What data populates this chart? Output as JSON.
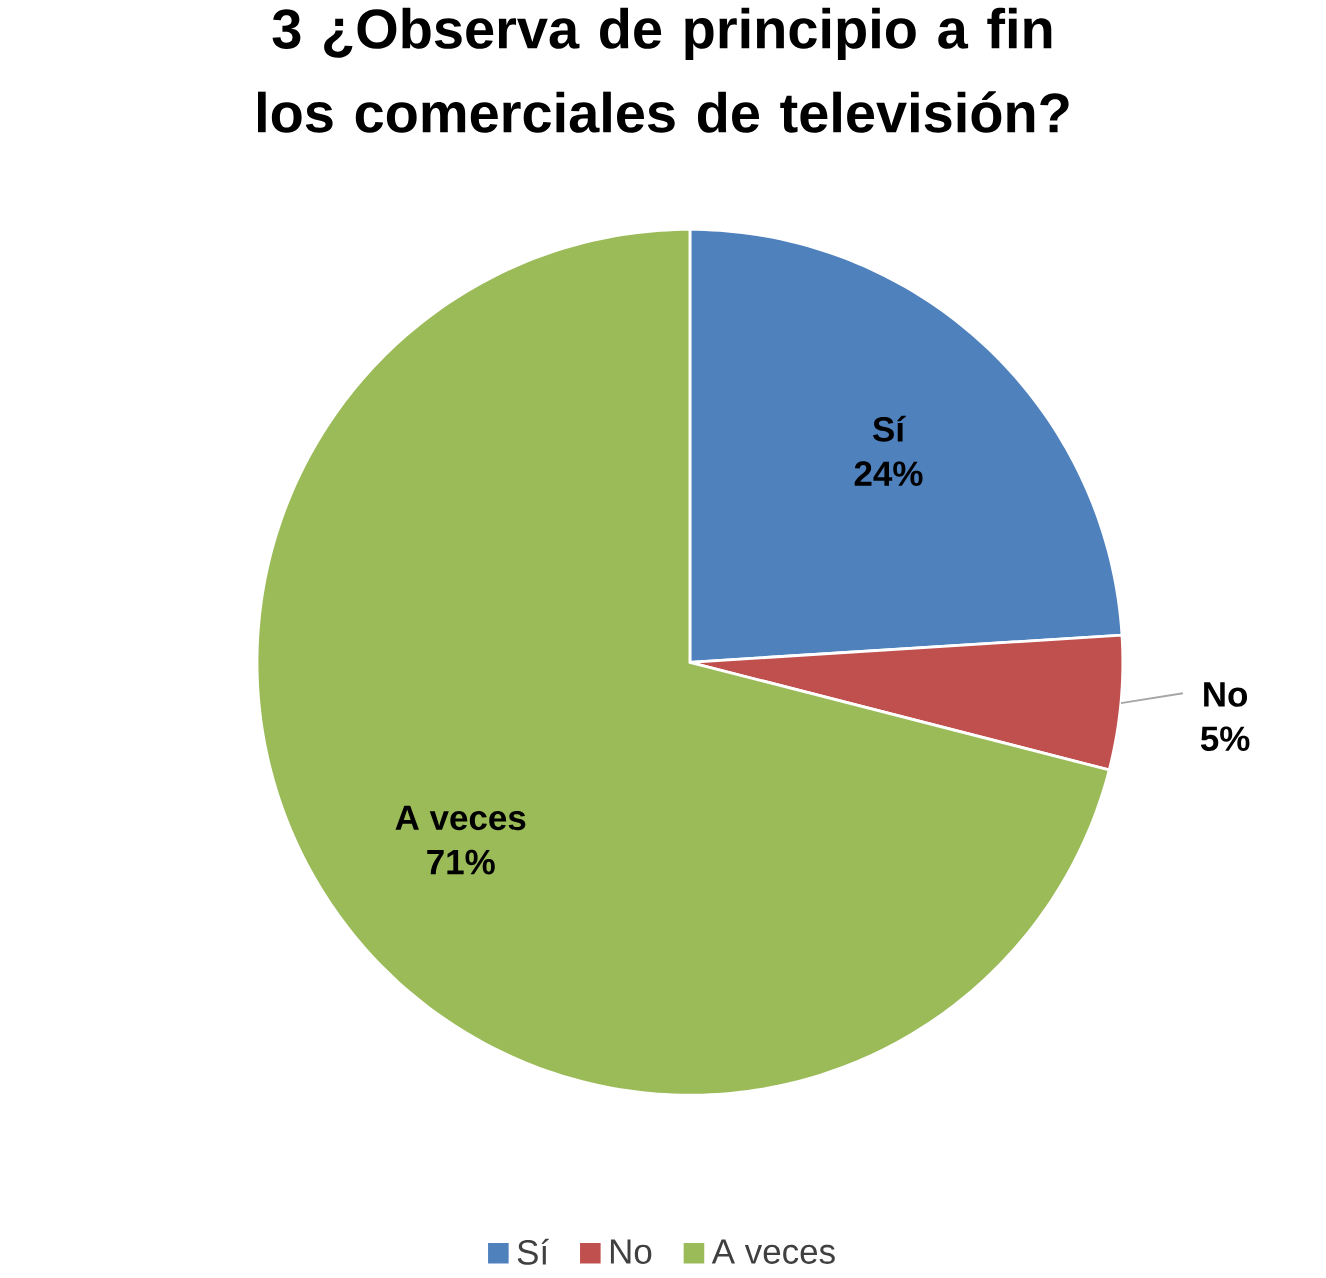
{
  "chart_data": {
    "type": "pie",
    "title": "3 ¿Observa de principio a fin los comerciales de televisión?",
    "categories": [
      "Sí",
      "No",
      "A veces"
    ],
    "values": [
      24,
      5,
      71
    ],
    "value_labels": [
      "24%",
      "5%",
      "71%"
    ],
    "colors": [
      "#4f81bd",
      "#c0504d",
      "#9bbb59"
    ],
    "legend": "bottom"
  }
}
